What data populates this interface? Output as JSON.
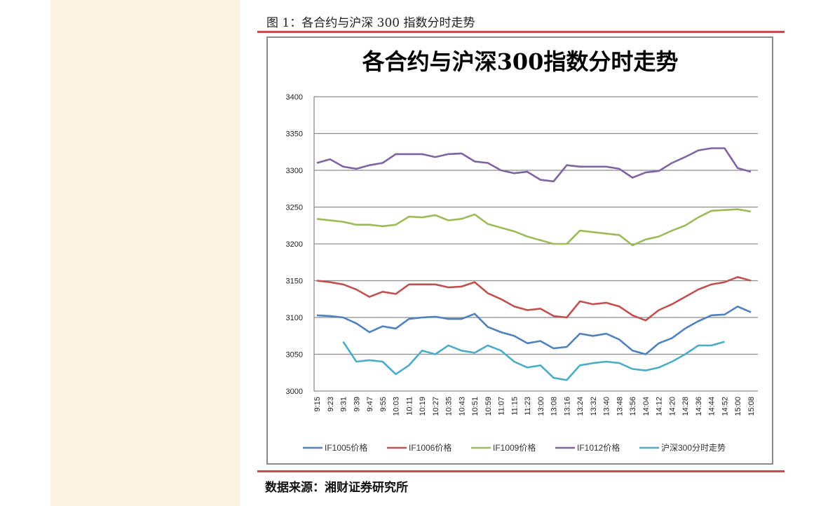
{
  "caption": "图 1：各合约与沪深 300 指数分时走势",
  "source": "数据来源：湘财证券研究所",
  "chart_data": {
    "type": "line",
    "title": "各合约与沪深300指数分时走势",
    "xlabel": "",
    "ylabel": "",
    "ylim": [
      3000,
      3400
    ],
    "yticks": [
      3000,
      3050,
      3100,
      3150,
      3200,
      3250,
      3300,
      3350,
      3400
    ],
    "grid": true,
    "legend_position": "bottom",
    "categories": [
      "9:15",
      "9:23",
      "9:31",
      "9:39",
      "9:47",
      "9:55",
      "10:03",
      "10:11",
      "10:19",
      "10:27",
      "10:35",
      "10:43",
      "10:51",
      "10:59",
      "11:07",
      "11:15",
      "11:23",
      "13:00",
      "13:08",
      "13:16",
      "13:24",
      "13:32",
      "13:40",
      "13:48",
      "13:56",
      "14:04",
      "14:12",
      "14:20",
      "14:28",
      "14:36",
      "14:44",
      "14:52",
      "15:00",
      "15:08"
    ],
    "series": [
      {
        "name": "IF1005价格",
        "color": "#4f81bd",
        "values": [
          3103,
          3102,
          3100,
          3092,
          3080,
          3088,
          3085,
          3098,
          3100,
          3101,
          3098,
          3098,
          3105,
          3087,
          3080,
          3075,
          3065,
          3068,
          3058,
          3060,
          3078,
          3075,
          3078,
          3070,
          3055,
          3050,
          3065,
          3072,
          3085,
          3095,
          3103,
          3104,
          3115,
          3107
        ]
      },
      {
        "name": "IF1006价格",
        "color": "#c0504d",
        "values": [
          3150,
          3148,
          3145,
          3138,
          3128,
          3135,
          3132,
          3145,
          3145,
          3145,
          3141,
          3142,
          3148,
          3133,
          3125,
          3115,
          3110,
          3112,
          3102,
          3100,
          3122,
          3118,
          3120,
          3115,
          3103,
          3096,
          3110,
          3118,
          3128,
          3138,
          3145,
          3148,
          3155,
          3150
        ]
      },
      {
        "name": "IF1009价格",
        "color": "#9bbb59",
        "values": [
          3234,
          3232,
          3230,
          3226,
          3226,
          3224,
          3226,
          3237,
          3236,
          3239,
          3232,
          3234,
          3240,
          3227,
          3222,
          3217,
          3210,
          3205,
          3200,
          3200,
          3218,
          3216,
          3214,
          3212,
          3198,
          3206,
          3210,
          3218,
          3225,
          3236,
          3245,
          3246,
          3247,
          3244
        ]
      },
      {
        "name": "IF1012价格",
        "color": "#8064a2",
        "values": [
          3310,
          3315,
          3305,
          3302,
          3307,
          3310,
          3322,
          3322,
          3322,
          3318,
          3322,
          3323,
          3312,
          3310,
          3300,
          3296,
          3298,
          3287,
          3285,
          3307,
          3305,
          3305,
          3305,
          3302,
          3290,
          3297,
          3299,
          3310,
          3318,
          3327,
          3330,
          3330,
          3303,
          3298
        ]
      },
      {
        "name": "沪深300分时走势",
        "color": "#4bacc6",
        "values": [
          null,
          null,
          3067,
          3040,
          3042,
          3040,
          3023,
          3035,
          3055,
          3050,
          3062,
          3055,
          3052,
          3062,
          3055,
          3040,
          3032,
          3035,
          3018,
          3015,
          3035,
          3038,
          3040,
          3038,
          3030,
          3028,
          3032,
          3040,
          3050,
          3062,
          3062,
          3067,
          null,
          null
        ]
      }
    ]
  }
}
